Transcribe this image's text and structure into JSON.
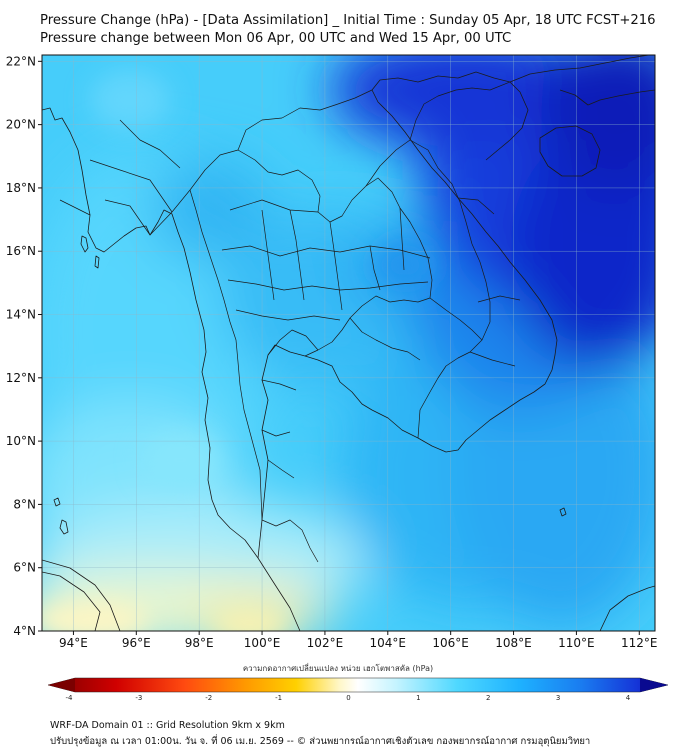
{
  "header": {
    "title_line1": "Pressure Change (hPa) - [Data Assimilation] _ Initial Time : Sunday 05 Apr, 18 UTC FCST+216",
    "title_line2": "Pressure change between Mon 06 Apr, 00 UTC and Wed 15 Apr, 00 UTC"
  },
  "map": {
    "lat_labels": [
      "22°N",
      "20°N",
      "18°N",
      "16°N",
      "14°N",
      "12°N",
      "10°N",
      "8°N",
      "6°N",
      "4°N"
    ],
    "lon_labels": [
      "94°E",
      "96°E",
      "98°E",
      "100°E",
      "102°E",
      "104°E",
      "106°E",
      "108°E",
      "110°E",
      "112°E"
    ],
    "lat_values": [
      22,
      20,
      18,
      16,
      14,
      12,
      10,
      8,
      6,
      4
    ],
    "lon_values": [
      94,
      96,
      98,
      100,
      102,
      104,
      106,
      108,
      110,
      112
    ],
    "extent": {
      "lon_min": 93.0,
      "lon_max": 112.5,
      "lat_min": 4.0,
      "lat_max": 22.2
    }
  },
  "colorbar": {
    "label": "ความกดอากาศเปลี่ยนแปลง หน่วย เฮกโตพาสคัล (hPa)",
    "tick_labels": [
      "-4",
      "-3",
      "-2",
      "-1",
      "0",
      "1",
      "2",
      "3",
      "4"
    ],
    "min": -4,
    "max": 4,
    "colors": {
      "neg_deep": "#7a0000",
      "neg_mid": "#ff2a10",
      "neg_light": "#ffd000",
      "neutral": "#ffffff",
      "pos_light": "#4fd8ff",
      "pos_mid": "#1a9dff",
      "pos_deep": "#0c1ed0"
    }
  },
  "footer": {
    "line1": "WRF-DA Domain 01 :: Grid Resolution 9km x 9km",
    "line2": "ปรับปรุงข้อมูล ณ เวลา 01:00น. วัน จ. ที่ 06 เม.ย. 2569 -- © ส่วนพยากรณ์อากาศเชิงตัวเลข กองพยากรณ์อากาศ กรมอุตุนิยมวิทยา"
  }
}
